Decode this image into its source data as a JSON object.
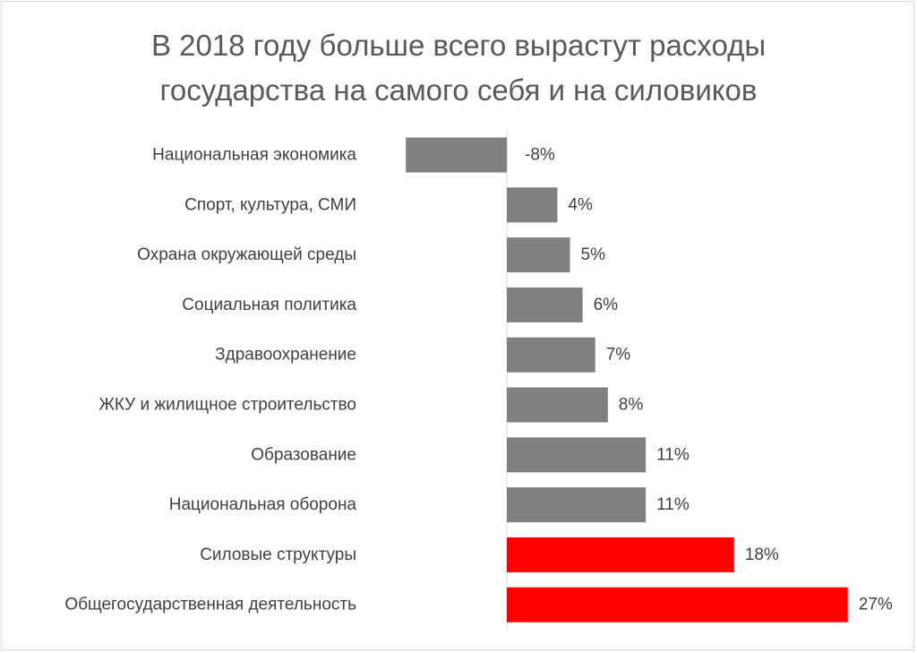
{
  "chart_data": {
    "type": "bar",
    "orientation": "horizontal",
    "title": "В 2018 году больше всего вырастут расходы государства на самого себя и на силовиков",
    "title_lines": [
      "В 2018 году больше всего вырастут расходы",
      "государства на самого себя и на силовиков"
    ],
    "categories": [
      "Национальная экономика",
      "Спорт, культура, СМИ",
      "Охрана окружающей среды",
      "Социальная политика",
      "Здравоохранение",
      "ЖКУ и жилищное строительство",
      "Образование",
      "Национальная оборона",
      "Силовые структуры",
      "Общегосударственная деятельность"
    ],
    "values": [
      -8,
      4,
      5,
      6,
      7,
      8,
      11,
      11,
      18,
      27
    ],
    "value_labels": [
      "-8%",
      "4%",
      "5%",
      "6%",
      "7%",
      "8%",
      "11%",
      "11%",
      "18%",
      "27%"
    ],
    "highlighted": [
      false,
      false,
      false,
      false,
      false,
      false,
      false,
      false,
      true,
      true
    ],
    "xlabel": "",
    "ylabel": "",
    "value_unit": "%",
    "xlim": [
      -8,
      27
    ],
    "grid": false,
    "legend": "none",
    "colors": {
      "default_bar": "#808080",
      "highlight_bar": "#ff0000",
      "axis_line": "#d9d9d9",
      "text": "#404040",
      "title": "#595959"
    }
  }
}
